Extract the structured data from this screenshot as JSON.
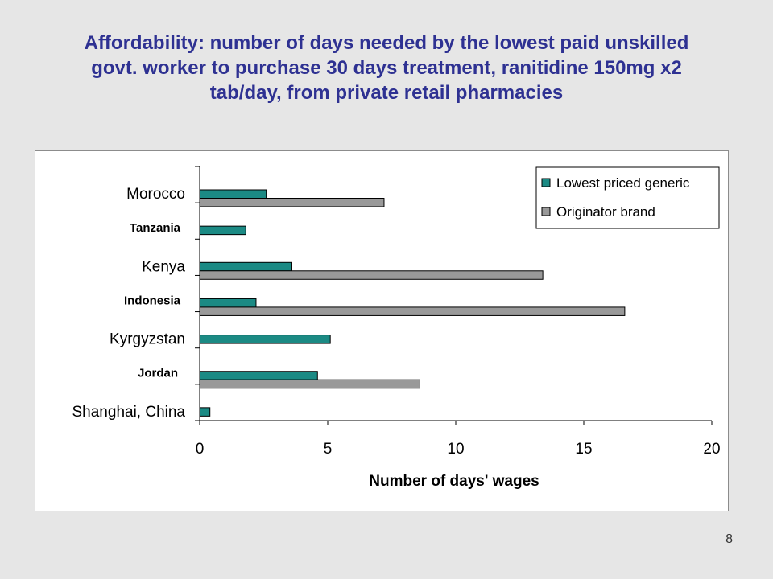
{
  "title_lines": [
    "Affordability: number of days needed by the lowest paid unskilled",
    "govt. worker to purchase 30 days treatment, ranitidine 150mg x2",
    "tab/day, from private retail pharmacies"
  ],
  "page_number": "8",
  "colors": {
    "title": "#2e3192",
    "generic": "#1b8a84",
    "originator": "#999999",
    "background": "#e6e6e6"
  },
  "chart_data": {
    "type": "bar",
    "orientation": "horizontal",
    "title": "Affordability: number of days needed by the lowest paid unskilled govt. worker to purchase 30 days treatment, ranitidine 150mg x2 tab/day, from private retail pharmacies",
    "xlabel": "Number of days' wages",
    "ylabel": "",
    "xlim": [
      0,
      20
    ],
    "xticks": [
      "0",
      "5",
      "10",
      "15",
      "20"
    ],
    "categories": [
      "Morocco",
      "Tanzania",
      "Kenya",
      "Indonesia",
      "Kyrgyzstan",
      "Jordan",
      "Shanghai, China"
    ],
    "series": [
      {
        "name": "Lowest priced generic",
        "values": [
          2.6,
          1.8,
          3.6,
          2.2,
          5.1,
          4.6,
          0.4
        ]
      },
      {
        "name": "Originator brand",
        "values": [
          7.2,
          null,
          13.4,
          16.6,
          null,
          8.6,
          null
        ]
      }
    ],
    "grid": false,
    "legend": "top-right"
  }
}
